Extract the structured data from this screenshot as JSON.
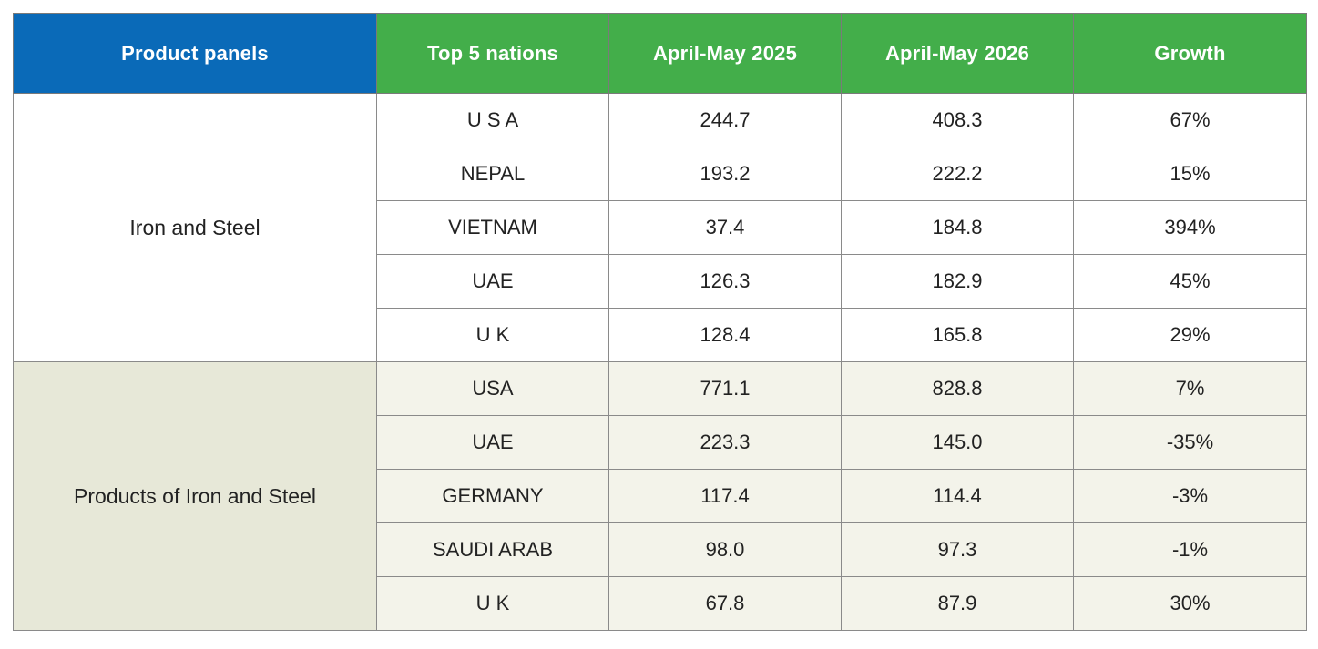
{
  "table": {
    "headers": [
      "Product panels",
      "Top 5 nations",
      "April-May 2025",
      "April-May 2026",
      "Growth"
    ],
    "groups": [
      {
        "panel": "Iron and Steel",
        "rows": [
          {
            "nation": "U S A",
            "v2025": "244.7",
            "v2026": "408.3",
            "growth": "67%"
          },
          {
            "nation": "NEPAL",
            "v2025": "193.2",
            "v2026": "222.2",
            "growth": "15%"
          },
          {
            "nation": "VIETNAM",
            "v2025": "37.4",
            "v2026": "184.8",
            "growth": "394%"
          },
          {
            "nation": "UAE",
            "v2025": "126.3",
            "v2026": "182.9",
            "growth": "45%"
          },
          {
            "nation": "U K",
            "v2025": "128.4",
            "v2026": "165.8",
            "growth": "29%"
          }
        ]
      },
      {
        "panel": "Products of Iron and Steel",
        "rows": [
          {
            "nation": "USA",
            "v2025": "771.1",
            "v2026": "828.8",
            "growth": "7%"
          },
          {
            "nation": "UAE",
            "v2025": "223.3",
            "v2026": "145.0",
            "growth": "-35%"
          },
          {
            "nation": "GERMANY",
            "v2025": "117.4",
            "v2026": "114.4",
            "growth": "-3%"
          },
          {
            "nation": "SAUDI ARAB",
            "v2025": "98.0",
            "v2026": "97.3",
            "growth": "-1%"
          },
          {
            "nation": "U K",
            "v2025": "67.8",
            "v2026": "87.9",
            "growth": "30%"
          }
        ]
      }
    ],
    "colors": {
      "header_blue": "#0a6ab8",
      "header_green": "#43ae4a",
      "group2_panel_bg": "#e7e8d8",
      "group2_row_bg": "#f3f3ea"
    }
  }
}
